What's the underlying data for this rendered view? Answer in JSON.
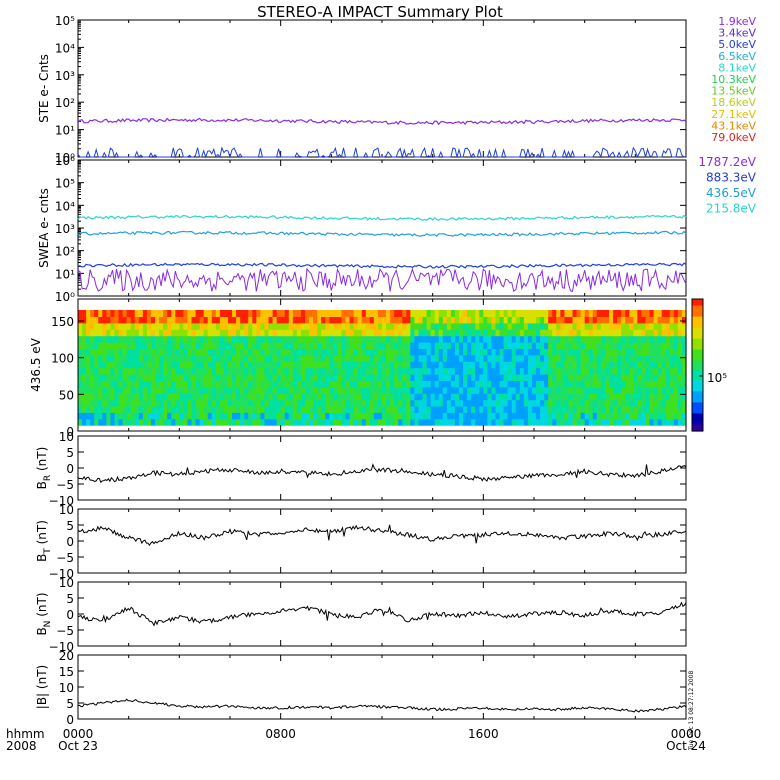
{
  "title": "STEREO-A IMPACT Summary Plot",
  "stamp": "Tue Dec 13 08:27:12 2008",
  "footer": {
    "hhmm_label": "hhmm",
    "year_label": "2008",
    "ticks": [
      {
        "time": "0000",
        "date": "Oct 23"
      },
      {
        "time": "0800",
        "date": ""
      },
      {
        "time": "1600",
        "date": ""
      },
      {
        "time": "0000",
        "date": "Oct 24"
      }
    ]
  },
  "legend_ste": [
    {
      "label": "1.9keV",
      "color": "#8a2be2"
    },
    {
      "label": "3.4keV",
      "color": "#5a2be2"
    },
    {
      "label": "5.0keV",
      "color": "#1f3fe0"
    },
    {
      "label": "6.5keV",
      "color": "#20b0d0"
    },
    {
      "label": "8.1keV",
      "color": "#2ad6c8"
    },
    {
      "label": "10.3keV",
      "color": "#22cc55"
    },
    {
      "label": "13.5keV",
      "color": "#66cc22"
    },
    {
      "label": "18.6keV",
      "color": "#bbcc22"
    },
    {
      "label": "27.1keV",
      "color": "#e6c000"
    },
    {
      "label": "43.1keV",
      "color": "#e08a00"
    },
    {
      "label": "79.0keV",
      "color": "#dd2222"
    }
  ],
  "legend_swea": [
    {
      "label": "1787.2eV",
      "color": "#8a2be2"
    },
    {
      "label": "883.3eV",
      "color": "#1f3fe0"
    },
    {
      "label": "436.5eV",
      "color": "#20a0e0"
    },
    {
      "label": "215.8eV",
      "color": "#2ad6c8"
    }
  ],
  "colorbar": {
    "label": "10⁵"
  },
  "chart_data": [
    {
      "type": "line",
      "panel": "ste",
      "ylabel": "STE e- Cnts",
      "scale": "log",
      "ylim": [
        1,
        100000
      ],
      "ytick_labels": [
        "10⁰",
        "10¹",
        "10²",
        "10³",
        "10⁴",
        "10⁵"
      ],
      "xlim": [
        0,
        24
      ],
      "series": [
        {
          "name": "1.9keV",
          "level": 20,
          "color": "#8a2be2"
        },
        {
          "name": "5.0keV",
          "level": 1,
          "color": "#1f3fe0"
        }
      ]
    },
    {
      "type": "line",
      "panel": "swea",
      "ylabel": "SWEA e- cnts",
      "scale": "log",
      "ylim": [
        1,
        1000000
      ],
      "ytick_labels": [
        "10⁰",
        "10¹",
        "10²",
        "10³",
        "10⁴",
        "10⁵",
        "10⁶"
      ],
      "xlim": [
        0,
        24
      ],
      "series": [
        {
          "name": "215.8eV",
          "level": 2800,
          "color": "#2ad6c8"
        },
        {
          "name": "436.5eV",
          "level": 550,
          "color": "#20a0e0"
        },
        {
          "name": "883.3eV",
          "level": 22,
          "color": "#1f3fe0"
        },
        {
          "name": "1787.2eV",
          "level": 5,
          "color": "#8a2be2"
        }
      ]
    },
    {
      "type": "heatmap",
      "panel": "pad",
      "ylabel": "436.5 eV",
      "ylim": [
        0,
        180
      ],
      "yticks": [
        0,
        50,
        100,
        150
      ],
      "xlim": [
        0,
        24
      ]
    },
    {
      "type": "line",
      "panel": "br",
      "ylabel": "B",
      "ylabel_sub": "R",
      "ylabel_unit": "(nT)",
      "ylim": [
        -10,
        10
      ],
      "yticks": [
        10,
        5,
        0,
        -5,
        -10
      ],
      "yticklabels": [
        "10",
        "5",
        "0",
        "−5",
        "−10"
      ],
      "xlim": [
        0,
        24
      ],
      "x": [
        0,
        1,
        2,
        3,
        4,
        5,
        6,
        7,
        8,
        9,
        10,
        11,
        12,
        13,
        14,
        15,
        16,
        17,
        18,
        19,
        20,
        21,
        22,
        23,
        24
      ],
      "values": [
        -3,
        -4,
        -3,
        -1.5,
        -2,
        -1,
        -0.5,
        -1.5,
        -1,
        -1.5,
        -2,
        -1,
        -0.5,
        -1,
        -2,
        -2.5,
        -3.5,
        -3,
        -2.5,
        -2,
        -1,
        -2,
        -2.5,
        -1,
        0.5
      ]
    },
    {
      "type": "line",
      "panel": "bt",
      "ylabel": "B",
      "ylabel_sub": "T",
      "ylabel_unit": "(nT)",
      "ylim": [
        -10,
        10
      ],
      "yticks": [
        10,
        5,
        0,
        -5,
        -10
      ],
      "yticklabels": [
        "10",
        "5",
        "0",
        "−5",
        "−10"
      ],
      "xlim": [
        0,
        24
      ],
      "x": [
        0,
        1,
        2,
        3,
        4,
        5,
        6,
        7,
        8,
        9,
        10,
        11,
        12,
        13,
        14,
        15,
        16,
        17,
        18,
        19,
        20,
        21,
        22,
        23,
        24
      ],
      "values": [
        3,
        4,
        1,
        -1,
        2.5,
        1,
        3,
        2,
        2.5,
        3.5,
        3,
        4.5,
        3,
        2,
        0.5,
        1.5,
        2,
        2.5,
        2,
        1,
        1.5,
        2.5,
        1.5,
        2,
        3
      ]
    },
    {
      "type": "line",
      "panel": "bn",
      "ylabel": "B",
      "ylabel_sub": "N",
      "ylabel_unit": "(nT)",
      "ylim": [
        -10,
        10
      ],
      "yticks": [
        10,
        5,
        0,
        -5,
        -10
      ],
      "yticklabels": [
        "10",
        "5",
        "0",
        "−5",
        "−10"
      ],
      "xlim": [
        0,
        24
      ],
      "x": [
        0,
        1,
        2,
        3,
        4,
        5,
        6,
        7,
        8,
        9,
        10,
        11,
        12,
        13,
        14,
        15,
        16,
        17,
        18,
        19,
        20,
        21,
        22,
        23,
        24
      ],
      "values": [
        -1,
        -2,
        2,
        -3,
        -1,
        -2.5,
        -1,
        0,
        1,
        2,
        0,
        -1,
        1.5,
        -2,
        0,
        -0.5,
        0.5,
        -1,
        0,
        0.5,
        -0.5,
        1,
        0,
        0.5,
        3
      ]
    },
    {
      "type": "line",
      "panel": "bmag",
      "ylabel": "|B| (nT)",
      "ylim": [
        0,
        20
      ],
      "yticks": [
        20,
        15,
        10,
        5,
        0
      ],
      "yticklabels": [
        "20",
        "15",
        "10",
        "5",
        "0"
      ],
      "xlim": [
        0,
        24
      ],
      "x": [
        0,
        1,
        2,
        3,
        4,
        5,
        6,
        7,
        8,
        9,
        10,
        11,
        12,
        13,
        14,
        15,
        16,
        17,
        18,
        19,
        20,
        21,
        22,
        23,
        24
      ],
      "values": [
        4,
        5,
        6,
        5,
        4,
        3.8,
        4,
        3.5,
        3.5,
        3.8,
        3.5,
        4,
        3.8,
        3.5,
        3,
        3.2,
        3.5,
        3,
        3.2,
        3,
        3.5,
        3.2,
        2.5,
        3,
        4
      ]
    }
  ]
}
